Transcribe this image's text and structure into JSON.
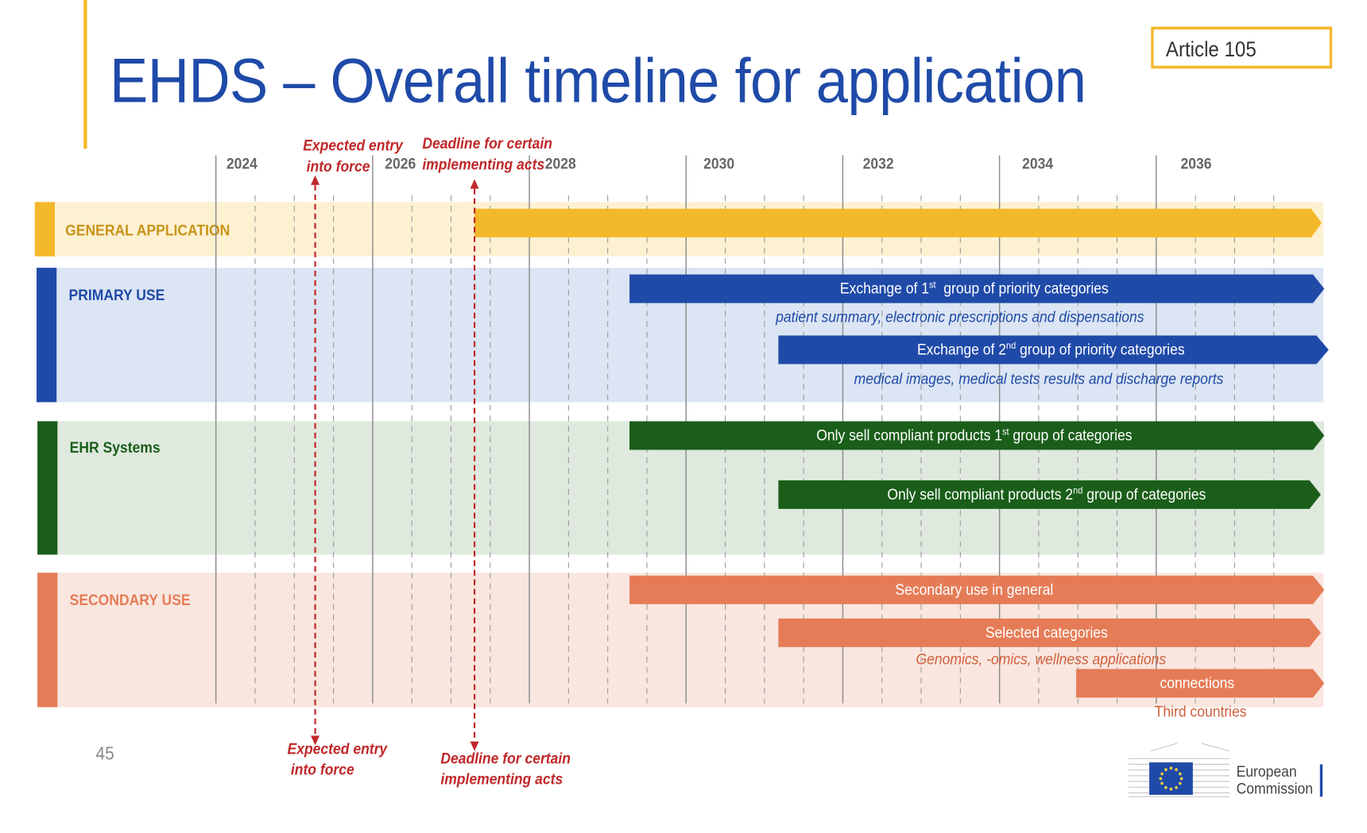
{
  "title": "EHDS – Overall timeline for application",
  "article": "Article 105",
  "page_number": "45",
  "years": [
    "2024",
    "2026",
    "2028",
    "2030",
    "2032",
    "2034",
    "2036"
  ],
  "milestones": {
    "entry_into_force": {
      "label_top_line1": "Expected entry",
      "label_top_line2": "into force",
      "label_bottom_line1": "Expected entry",
      "label_bottom_line2": "into force"
    },
    "implementing_acts": {
      "label_top_line1": "Deadline for certain",
      "label_top_line2": "implementing acts",
      "label_bottom_line1": "Deadline for certain",
      "label_bottom_line2": "implementing acts"
    }
  },
  "bands": {
    "general": {
      "label": "GENERAL APPLICATION",
      "color": "#f4b82b",
      "bg": "#fdf1d2"
    },
    "primary": {
      "label": "PRIMARY USE",
      "color": "#1f4aa8",
      "bg": "#dbe5f3"
    },
    "ehr": {
      "label": "EHR Systems",
      "color": "#1a5e1a",
      "bg": "#dfe9de"
    },
    "secondary": {
      "label": "SECONDARY USE",
      "color": "#e57c57",
      "bg": "#f9e6df"
    }
  },
  "bars": {
    "primary_1": {
      "pre": "Exchange of 1",
      "sup": "st",
      "post": "  group of priority categories",
      "note": "patient summary, electronic prescriptions and dispensations"
    },
    "primary_2": {
      "pre": "Exchange of 2",
      "sup": "nd",
      "post": " group of priority categories",
      "note": "medical images, medical tests results and discharge reports"
    },
    "ehr_1": {
      "pre": "Only sell compliant products 1",
      "sup": "st",
      "post": " group of categories"
    },
    "ehr_2": {
      "pre": "Only sell compliant products 2",
      "sup": "nd",
      "post": " group of categories"
    },
    "secondary_1": {
      "label": "Secondary use in general"
    },
    "secondary_2": {
      "label": "Selected categories",
      "note": "Genomics, -omics, wellness applications"
    },
    "secondary_3": {
      "label": "connections",
      "note": "Third countries"
    }
  },
  "logo": {
    "line1": "European",
    "line2": "Commission"
  }
}
